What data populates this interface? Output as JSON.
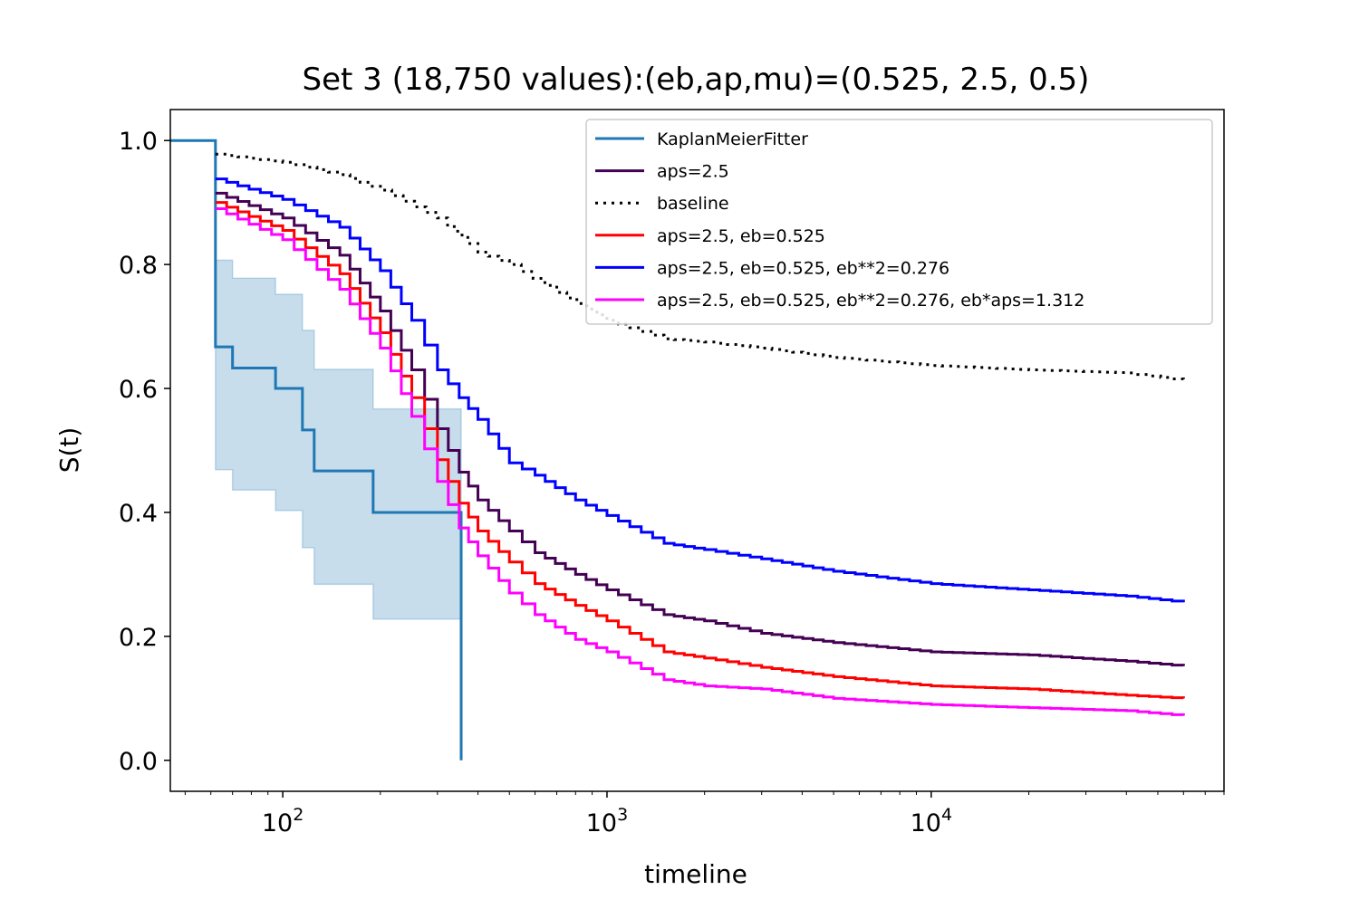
{
  "chart_data": {
    "type": "line",
    "title": "Set 3 (18,750 values):(eb,ap,mu)=(0.525, 2.5, 0.5)",
    "xlabel": "timeline",
    "ylabel": "S(t)",
    "x_scale": "log",
    "xlim": [
      45,
      80000
    ],
    "ylim": [
      -0.05,
      1.05
    ],
    "grid": false,
    "legend_position": "upper right",
    "x_ticks": [
      {
        "value": 100,
        "base": "10",
        "exp": "2"
      },
      {
        "value": 1000,
        "base": "10",
        "exp": "3"
      },
      {
        "value": 10000,
        "base": "10",
        "exp": "4"
      }
    ],
    "y_ticks": [
      {
        "value": 0.0,
        "label": "0.0"
      },
      {
        "value": 0.2,
        "label": "0.2"
      },
      {
        "value": 0.4,
        "label": "0.4"
      },
      {
        "value": 0.6,
        "label": "0.6"
      },
      {
        "value": 0.8,
        "label": "0.8"
      },
      {
        "value": 1.0,
        "label": "1.0"
      }
    ],
    "series": [
      {
        "name": "KaplanMeierFitter",
        "color": "#1f77b4",
        "style": "solid",
        "points": [
          [
            45,
            1.0
          ],
          [
            62,
            1.0
          ],
          [
            62,
            0.667
          ],
          [
            70,
            0.667
          ],
          [
            70,
            0.633
          ],
          [
            95,
            0.633
          ],
          [
            95,
            0.6
          ],
          [
            115,
            0.6
          ],
          [
            115,
            0.533
          ],
          [
            125,
            0.533
          ],
          [
            125,
            0.467
          ],
          [
            190,
            0.467
          ],
          [
            190,
            0.4
          ],
          [
            355,
            0.4
          ],
          [
            355,
            0.0
          ]
        ],
        "ci_upper": [
          [
            62,
            0.807
          ],
          [
            70,
            0.807
          ],
          [
            70,
            0.778
          ],
          [
            95,
            0.778
          ],
          [
            95,
            0.752
          ],
          [
            115,
            0.752
          ],
          [
            115,
            0.694
          ],
          [
            125,
            0.694
          ],
          [
            125,
            0.631
          ],
          [
            190,
            0.631
          ],
          [
            190,
            0.567
          ],
          [
            355,
            0.567
          ]
        ],
        "ci_lower": [
          [
            62,
            0.469
          ],
          [
            70,
            0.469
          ],
          [
            70,
            0.436
          ],
          [
            95,
            0.436
          ],
          [
            95,
            0.403
          ],
          [
            115,
            0.403
          ],
          [
            115,
            0.343
          ],
          [
            125,
            0.343
          ],
          [
            125,
            0.284
          ],
          [
            190,
            0.284
          ],
          [
            190,
            0.228
          ],
          [
            355,
            0.228
          ]
        ]
      },
      {
        "name": "aps=2.5",
        "color": "#440154",
        "style": "solid",
        "points": [
          [
            62,
            0.915
          ],
          [
            100,
            0.875
          ],
          [
            150,
            0.815
          ],
          [
            200,
            0.725
          ],
          [
            250,
            0.63
          ],
          [
            300,
            0.535
          ],
          [
            350,
            0.465
          ],
          [
            400,
            0.42
          ],
          [
            500,
            0.37
          ],
          [
            600,
            0.335
          ],
          [
            800,
            0.3
          ],
          [
            1000,
            0.275
          ],
          [
            1500,
            0.235
          ],
          [
            2000,
            0.225
          ],
          [
            3000,
            0.205
          ],
          [
            5000,
            0.19
          ],
          [
            10000,
            0.175
          ],
          [
            20000,
            0.17
          ],
          [
            40000,
            0.16
          ],
          [
            60000,
            0.152
          ]
        ]
      },
      {
        "name": "baseline",
        "color": "#000000",
        "style": "dotted",
        "points": [
          [
            62,
            0.978
          ],
          [
            100,
            0.965
          ],
          [
            150,
            0.945
          ],
          [
            200,
            0.92
          ],
          [
            300,
            0.875
          ],
          [
            400,
            0.82
          ],
          [
            500,
            0.8
          ],
          [
            700,
            0.755
          ],
          [
            1000,
            0.71
          ],
          [
            1500,
            0.68
          ],
          [
            2000,
            0.675
          ],
          [
            3000,
            0.665
          ],
          [
            5000,
            0.65
          ],
          [
            10000,
            0.637
          ],
          [
            20000,
            0.63
          ],
          [
            40000,
            0.625
          ],
          [
            60000,
            0.613
          ]
        ]
      },
      {
        "name": "aps=2.5, eb=0.525",
        "color": "#ff0000",
        "style": "solid",
        "points": [
          [
            62,
            0.9
          ],
          [
            100,
            0.855
          ],
          [
            150,
            0.785
          ],
          [
            200,
            0.69
          ],
          [
            250,
            0.585
          ],
          [
            300,
            0.485
          ],
          [
            350,
            0.415
          ],
          [
            400,
            0.37
          ],
          [
            500,
            0.32
          ],
          [
            600,
            0.285
          ],
          [
            800,
            0.25
          ],
          [
            1000,
            0.225
          ],
          [
            1500,
            0.175
          ],
          [
            2000,
            0.165
          ],
          [
            3000,
            0.15
          ],
          [
            5000,
            0.135
          ],
          [
            10000,
            0.12
          ],
          [
            20000,
            0.115
          ],
          [
            40000,
            0.105
          ],
          [
            60000,
            0.1
          ]
        ]
      },
      {
        "name": "aps=2.5, eb=0.525, eb**2=0.276",
        "color": "#0000ff",
        "style": "solid",
        "points": [
          [
            62,
            0.938
          ],
          [
            100,
            0.905
          ],
          [
            150,
            0.86
          ],
          [
            200,
            0.79
          ],
          [
            250,
            0.71
          ],
          [
            300,
            0.63
          ],
          [
            350,
            0.585
          ],
          [
            400,
            0.55
          ],
          [
            500,
            0.48
          ],
          [
            600,
            0.46
          ],
          [
            800,
            0.42
          ],
          [
            1000,
            0.395
          ],
          [
            1500,
            0.35
          ],
          [
            2000,
            0.34
          ],
          [
            3000,
            0.325
          ],
          [
            5000,
            0.305
          ],
          [
            10000,
            0.285
          ],
          [
            20000,
            0.275
          ],
          [
            40000,
            0.265
          ],
          [
            60000,
            0.255
          ]
        ]
      },
      {
        "name": "aps=2.5, eb=0.525, eb**2=0.276, eb*aps=1.312",
        "color": "#ff00ff",
        "style": "solid",
        "points": [
          [
            62,
            0.89
          ],
          [
            100,
            0.84
          ],
          [
            150,
            0.76
          ],
          [
            200,
            0.665
          ],
          [
            250,
            0.555
          ],
          [
            300,
            0.45
          ],
          [
            350,
            0.375
          ],
          [
            400,
            0.33
          ],
          [
            500,
            0.27
          ],
          [
            600,
            0.235
          ],
          [
            800,
            0.195
          ],
          [
            1000,
            0.175
          ],
          [
            1500,
            0.13
          ],
          [
            2000,
            0.12
          ],
          [
            3000,
            0.115
          ],
          [
            5000,
            0.1
          ],
          [
            10000,
            0.09
          ],
          [
            20000,
            0.085
          ],
          [
            40000,
            0.08
          ],
          [
            60000,
            0.072
          ]
        ]
      }
    ]
  }
}
